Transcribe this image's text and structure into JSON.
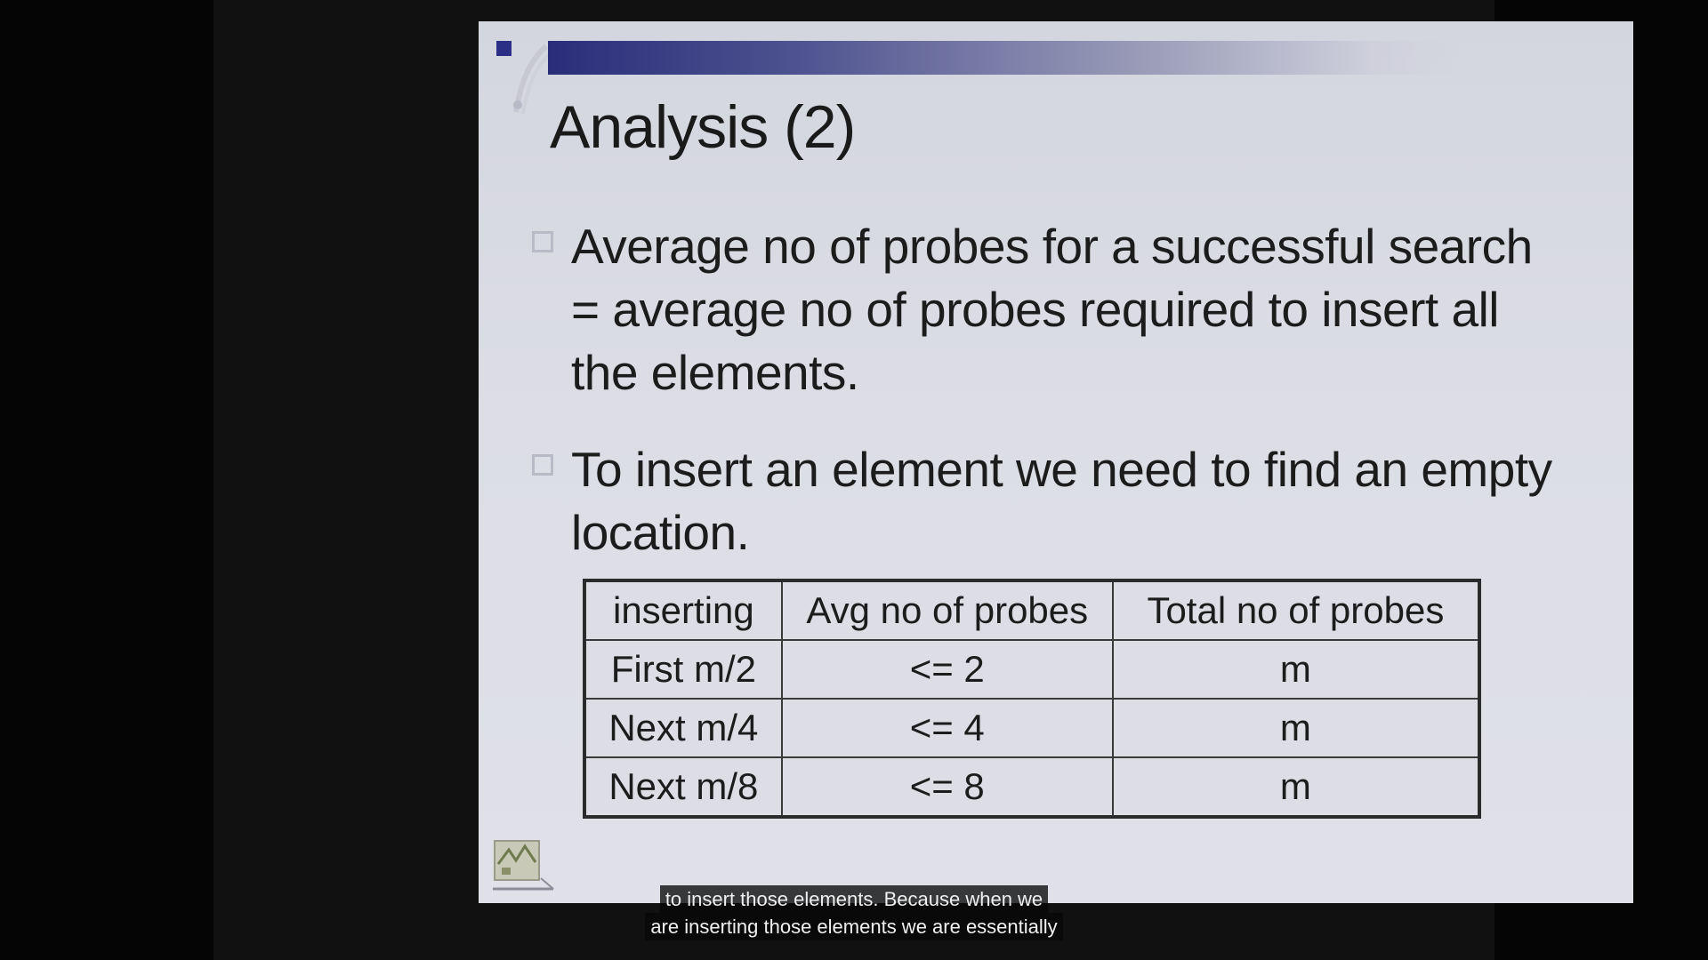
{
  "slide": {
    "title": "Analysis (2)",
    "bullets": [
      "Average no of probes for a successful search = average no of probes required to insert all the elements.",
      "To insert an element we need to find an empty location."
    ],
    "table": {
      "headers": [
        "inserting",
        "Avg no of probes",
        "Total no of probes"
      ],
      "rows": [
        [
          "First m/2",
          "<= 2",
          "m"
        ],
        [
          "Next m/4",
          "<= 4",
          "m"
        ],
        [
          "Next m/8",
          "<= 8",
          "m"
        ]
      ]
    },
    "accent_color": "#2b2f86",
    "background_color": "#dcdde5"
  },
  "captions": {
    "line1": "to insert those elements. Because when we",
    "line2": "are inserting those elements we are essentially"
  }
}
